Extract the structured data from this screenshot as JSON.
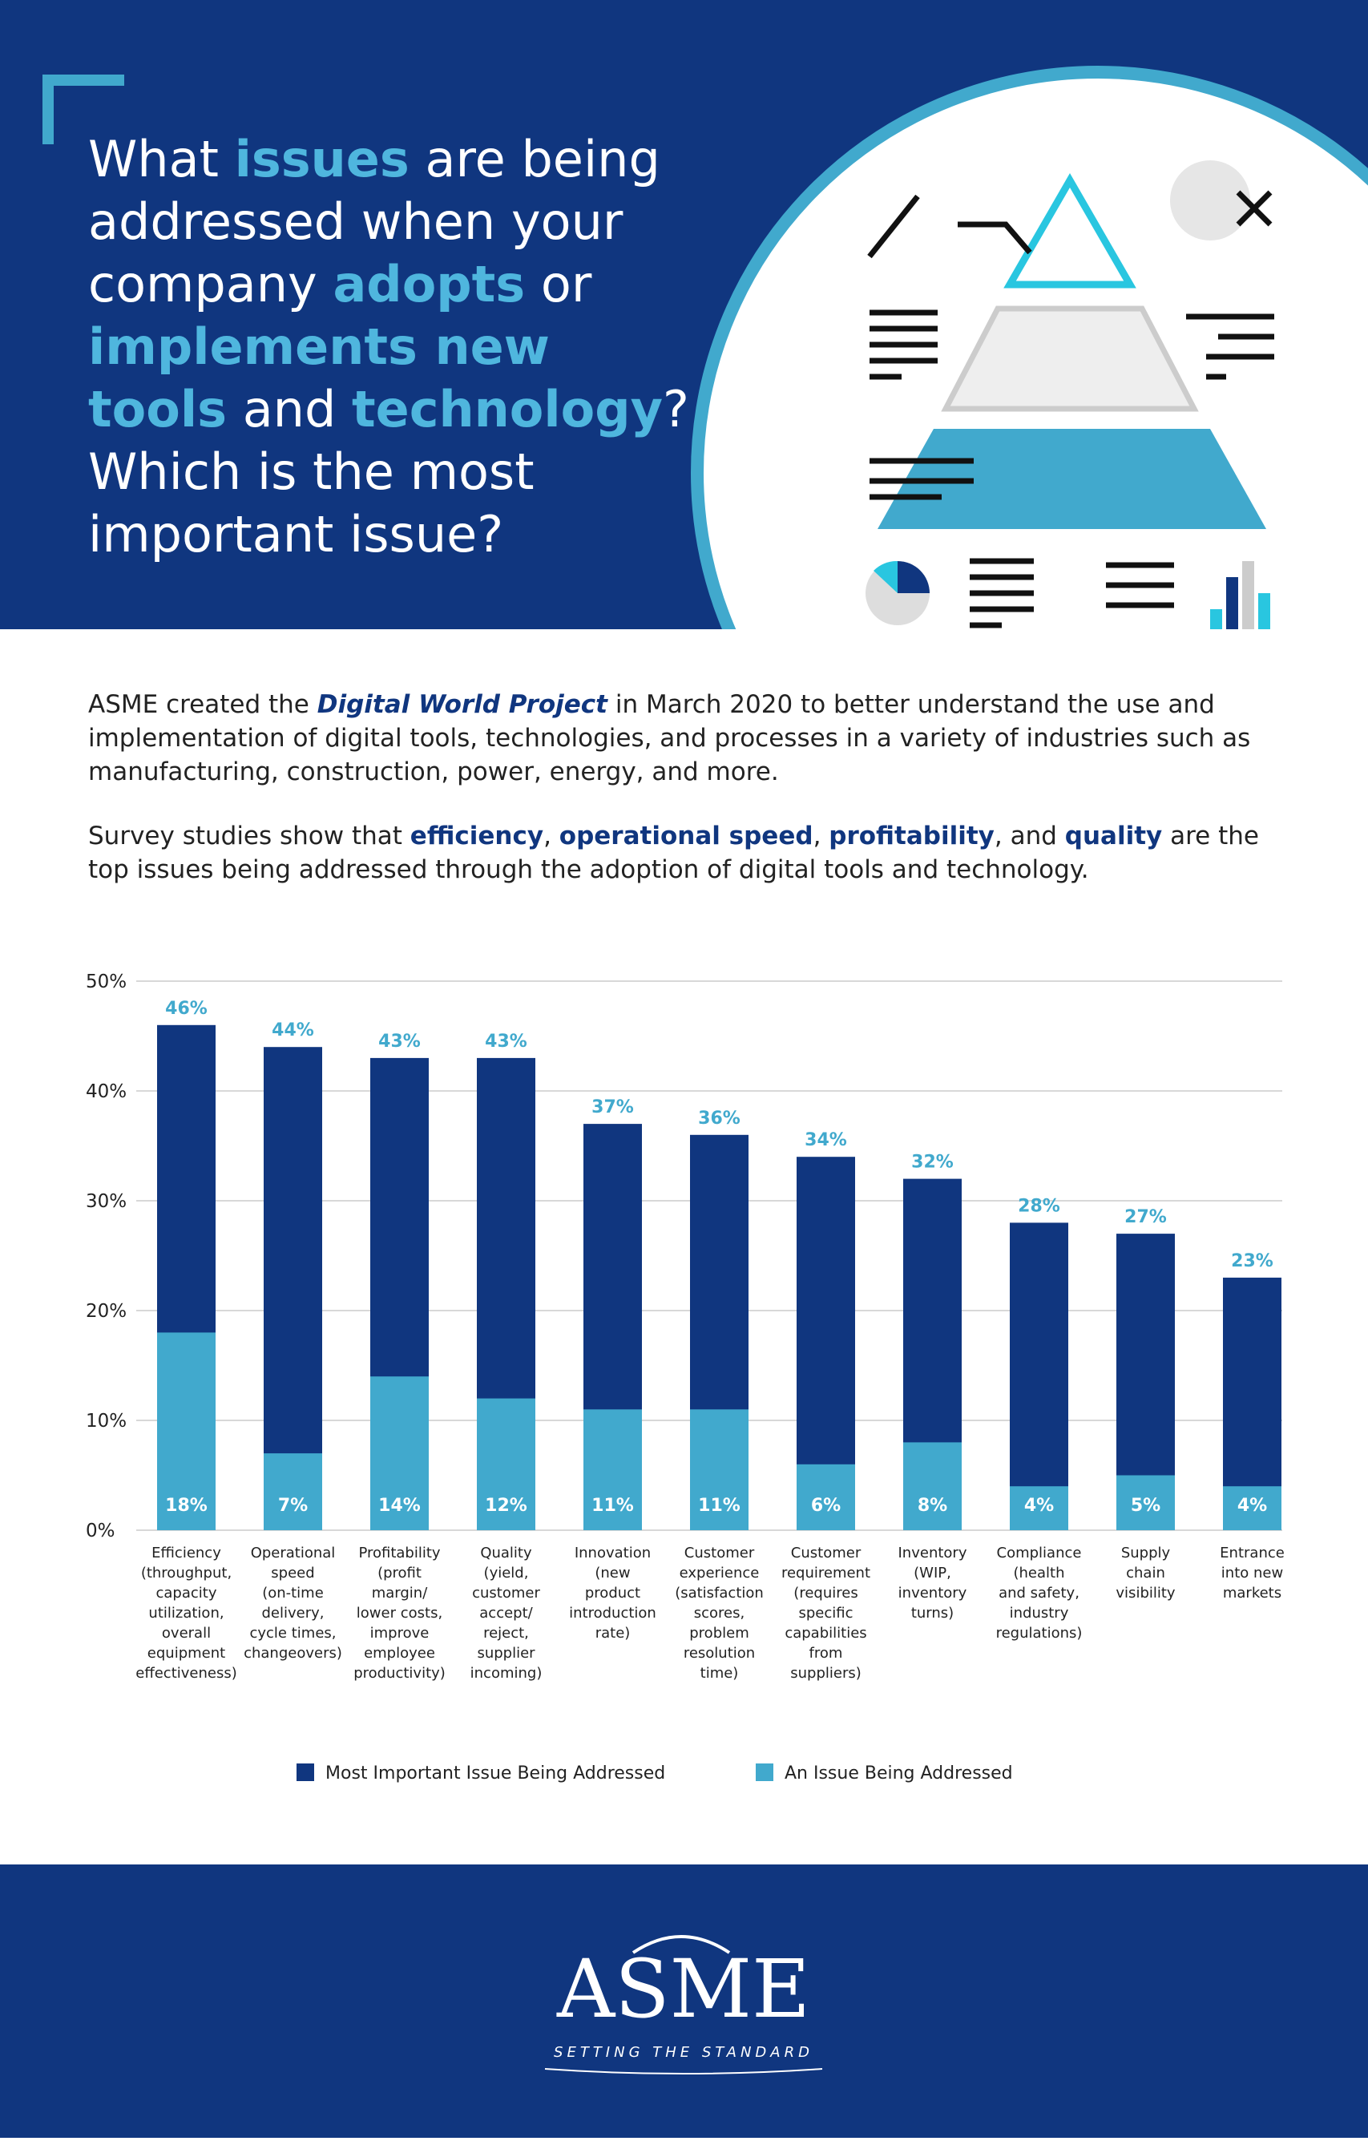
{
  "header": {
    "title_parts": [
      "What ",
      "issues",
      " are being",
      "addressed when your",
      "company ",
      "adopts",
      " or",
      "implements new",
      "tools",
      " and ",
      "technology",
      "?",
      "Which is the most",
      "important issue?"
    ]
  },
  "intro": {
    "p1": [
      "ASME created the ",
      "Digital World Project",
      " in March 2020 to better understand the use and implementation of digital tools, technologies, and processes in a variety of industries such as manufacturing, construction, power, energy, and more."
    ],
    "p2": [
      "Survey studies show that ",
      "efficiency",
      ", ",
      "operational speed",
      ", ",
      "profitability",
      ", and ",
      "quality",
      " are the top issues being addressed through the adoption of digital tools and technology."
    ]
  },
  "chart_data": {
    "type": "bar",
    "categories": [
      "Efficiency\n(throughput,\ncapacity\nutilization,\noverall\nequipment\neffectiveness)",
      "Operational\nspeed\n(on-time\ndelivery,\ncycle times,\nchangeovers)",
      "Profitability\n(profit\nmargin/\nlower costs,\nimprove\nemployee\nproductivity)",
      "Quality\n(yield,\ncustomer\naccept/\nreject,\nsupplier\nincoming)",
      "Innovation\n(new\nproduct\nintroduction\nrate)",
      "Customer\nexperience\n(satisfaction\nscores,\nproblem\nresolution\ntime)",
      "Customer\nrequirement\n(requires\nspecific\ncapabilities\nfrom\nsuppliers)",
      "Inventory\n(WIP,\ninventory\nturns)",
      "Compliance\n(health\nand safety,\nindustry\nregulations)",
      "Supply\nchain\nvisibility",
      "Entrance\ninto new\nmarkets"
    ],
    "series": [
      {
        "name": "Most Important Issue Being Addressed",
        "color": "#10367f",
        "values": [
          46,
          44,
          43,
          43,
          37,
          36,
          34,
          32,
          28,
          27,
          23
        ],
        "value_labels": [
          "46%",
          "44%",
          "43%",
          "43%",
          "37%",
          "36%",
          "34%",
          "32%",
          "28%",
          "27%",
          "23%"
        ]
      },
      {
        "name": "An Issue Being Addressed",
        "color": "#41a9cd",
        "values": [
          18,
          7,
          14,
          12,
          11,
          11,
          6,
          8,
          4,
          5,
          4
        ],
        "value_labels": [
          "18%",
          "7%",
          "14%",
          "12%",
          "11%",
          "11%",
          "6%",
          "8%",
          "4%",
          "5%",
          "4%"
        ]
      }
    ],
    "ylim": [
      0,
      50
    ],
    "yticks": [
      {
        "value": 0,
        "label": "0%"
      },
      {
        "value": 10,
        "label": "10%"
      },
      {
        "value": 20,
        "label": "20%"
      },
      {
        "value": 30,
        "label": "30%"
      },
      {
        "value": 40,
        "label": "40%"
      },
      {
        "value": 50,
        "label": "50%"
      }
    ],
    "grid": true
  },
  "footer": {
    "logo": "ASME",
    "tagline": "SETTING THE STANDARD"
  }
}
